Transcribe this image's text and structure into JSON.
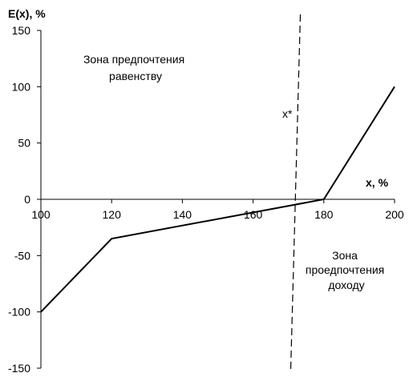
{
  "chart_data": {
    "type": "line",
    "title": "",
    "xlabel": "x, %",
    "ylabel": "E(x), %",
    "xlim": [
      100,
      200
    ],
    "ylim": [
      -150,
      150
    ],
    "x_ticks": [
      100,
      120,
      140,
      160,
      180,
      200
    ],
    "y_ticks": [
      150,
      100,
      50,
      0,
      -50,
      -100,
      -150
    ],
    "grid": false,
    "legend": "none",
    "series": [
      {
        "x": [
          100,
          120,
          180,
          200
        ],
        "y": [
          -100,
          -35,
          0,
          100
        ],
        "color": "#000000"
      }
    ],
    "reference_line": {
      "x": 172,
      "label": "x*",
      "style": "dashed"
    },
    "annotations": [
      {
        "lines": [
          "Зона предпочтения",
          "равенству"
        ]
      },
      {
        "lines": [
          "Зона",
          "проедпочтения",
          "доходу"
        ]
      }
    ]
  }
}
